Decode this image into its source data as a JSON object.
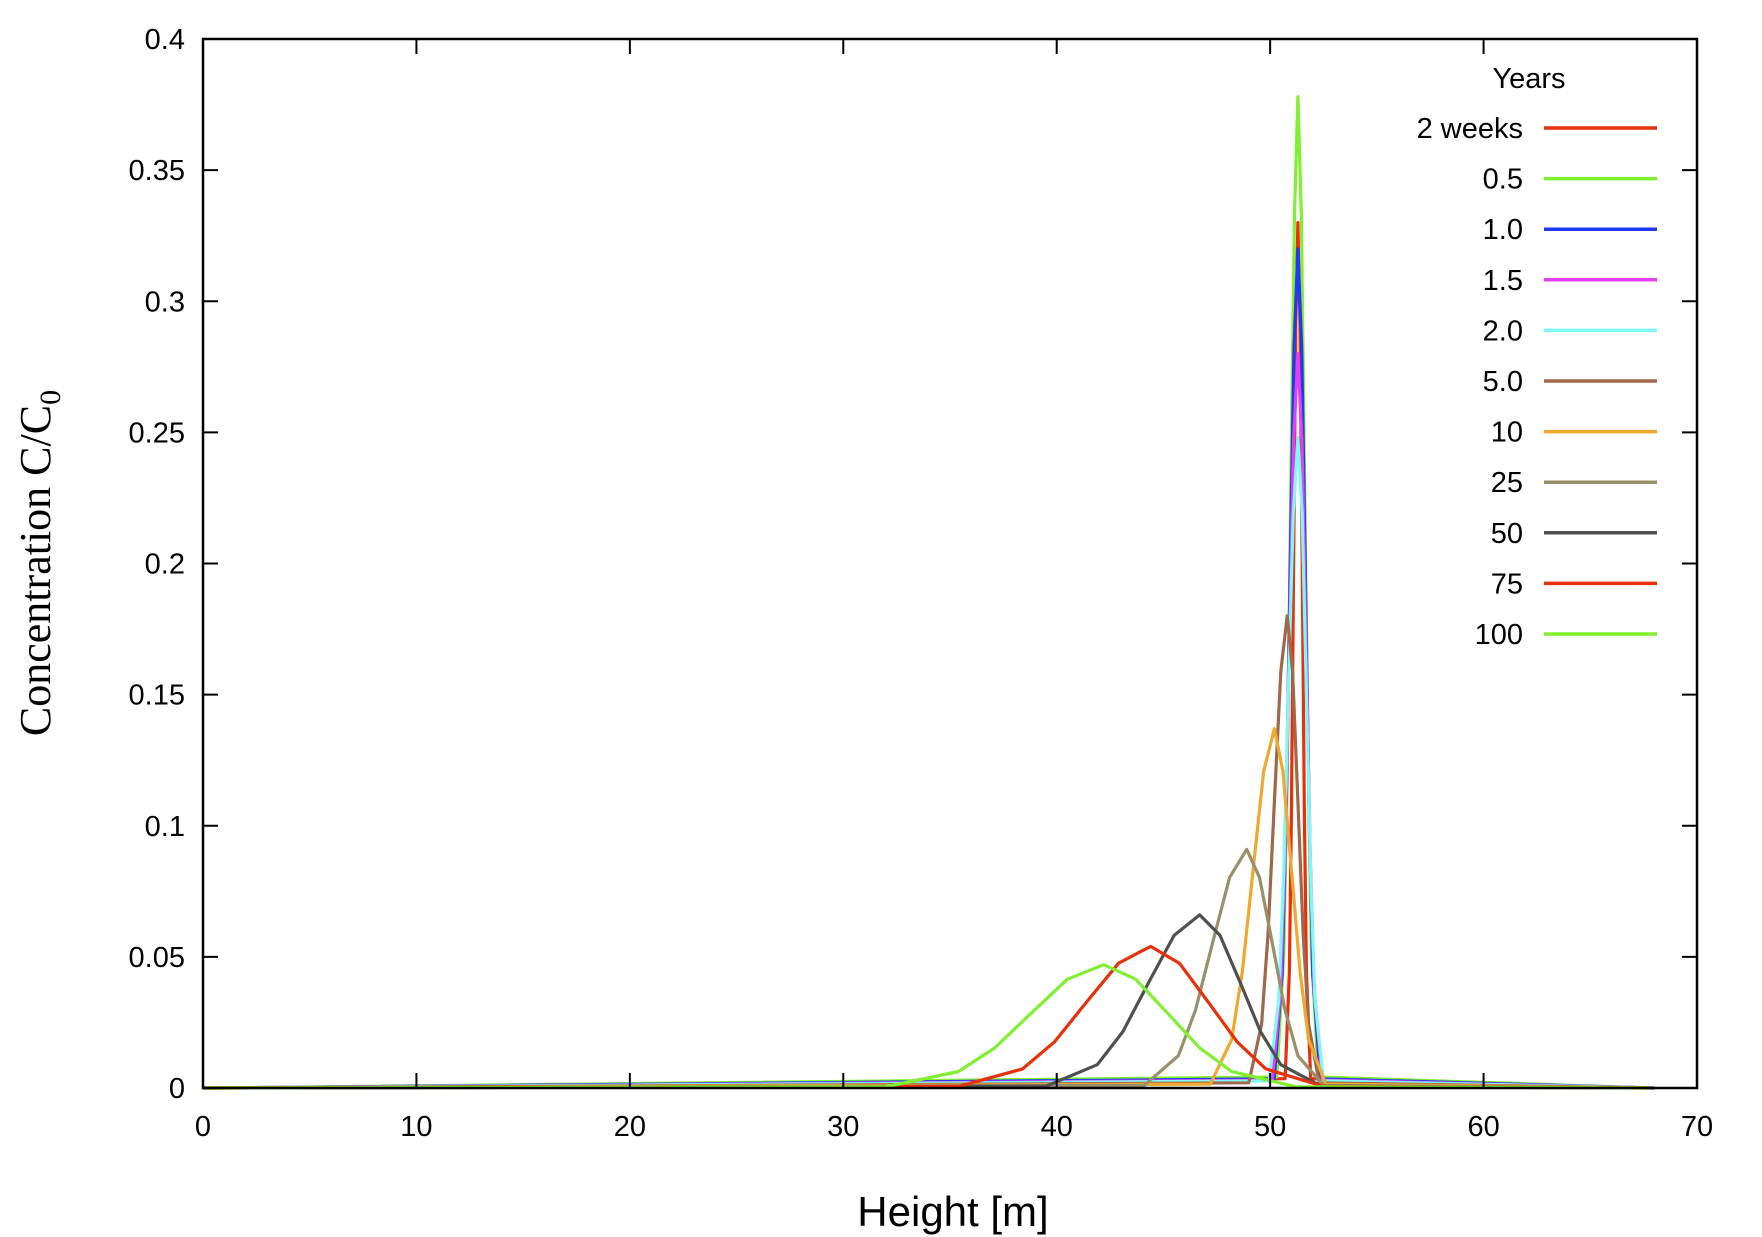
{
  "chart_data": {
    "type": "line",
    "title": "",
    "xlabel": "Height [m]",
    "ylabel_main": "Concentration C/C",
    "ylabel_subscript": "0",
    "xlim": [
      0,
      70
    ],
    "ylim": [
      0,
      0.4
    ],
    "xticks": [
      "0",
      "10",
      "20",
      "30",
      "40",
      "50",
      "60",
      "70"
    ],
    "yticks": [
      "0",
      "0.05",
      "0.1",
      "0.15",
      "0.2",
      "0.25",
      "0.3",
      "0.35",
      "0.4"
    ],
    "grid": false,
    "legend": {
      "title": "Years",
      "placement": "top-right"
    },
    "series": [
      {
        "name": "2 weeks",
        "color": "#e8300a",
        "points": [
          [
            0,
            0
          ],
          [
            50.7,
            0.0036
          ],
          [
            50.9,
            0.0446
          ],
          [
            51.0,
            0.1073
          ],
          [
            51.1,
            0.2003
          ],
          [
            51.2,
            0.2911
          ],
          [
            51.3,
            0.33
          ],
          [
            51.4,
            0.2911
          ],
          [
            51.5,
            0.2003
          ],
          [
            51.6,
            0.1073
          ],
          [
            51.7,
            0.0446
          ],
          [
            51.9,
            0.0036
          ],
          [
            68,
            0
          ]
        ]
      },
      {
        "name": "0.5",
        "color": "#80f030",
        "points": [
          [
            0,
            0
          ],
          [
            50.31,
            0.0042
          ],
          [
            50.64,
            0.051
          ],
          [
            50.81,
            0.1229
          ],
          [
            50.97,
            0.2294
          ],
          [
            51.14,
            0.3334
          ],
          [
            51.3,
            0.378
          ],
          [
            51.46,
            0.3334
          ],
          [
            51.62,
            0.2294
          ],
          [
            51.78,
            0.1229
          ],
          [
            51.94,
            0.051
          ],
          [
            52.26,
            0.0042
          ],
          [
            68,
            0
          ]
        ]
      },
      {
        "name": "1.0",
        "color": "#2038f8",
        "points": [
          [
            0,
            0
          ],
          [
            50.19,
            0.0035
          ],
          [
            50.56,
            0.0432
          ],
          [
            50.75,
            0.104
          ],
          [
            50.93,
            0.1942
          ],
          [
            51.12,
            0.2822
          ],
          [
            51.3,
            0.32
          ],
          [
            51.48,
            0.2822
          ],
          [
            51.65,
            0.1942
          ],
          [
            51.83,
            0.104
          ],
          [
            52.0,
            0.0432
          ],
          [
            52.35,
            0.0035
          ],
          [
            68,
            0
          ]
        ]
      },
      {
        "name": "1.5",
        "color": "#e040f8",
        "points": [
          [
            0,
            0
          ],
          [
            50.1,
            0.003
          ],
          [
            50.5,
            0.0378
          ],
          [
            50.7,
            0.091
          ],
          [
            50.9,
            0.17
          ],
          [
            51.1,
            0.247
          ],
          [
            51.3,
            0.28
          ],
          [
            51.49,
            0.247
          ],
          [
            51.68,
            0.17
          ],
          [
            51.87,
            0.091
          ],
          [
            52.06,
            0.0378
          ],
          [
            52.44,
            0.003
          ],
          [
            68,
            0
          ]
        ]
      },
      {
        "name": "2.0",
        "color": "#80f8f8",
        "points": [
          [
            0,
            0
          ],
          [
            49.95,
            0.0027
          ],
          [
            50.4,
            0.0335
          ],
          [
            50.63,
            0.0806
          ],
          [
            50.85,
            0.1505
          ],
          [
            51.08,
            0.2187
          ],
          [
            51.3,
            0.248
          ],
          [
            51.5,
            0.2187
          ],
          [
            51.7,
            0.1505
          ],
          [
            51.9,
            0.0806
          ],
          [
            52.1,
            0.0335
          ],
          [
            52.5,
            0.0027
          ],
          [
            68,
            0
          ]
        ]
      },
      {
        "name": "5.0",
        "color": "#a0684a",
        "points": [
          [
            0,
            0
          ],
          [
            49.0,
            0.002
          ],
          [
            49.6,
            0.0243
          ],
          [
            49.9,
            0.0585
          ],
          [
            50.2,
            0.1093
          ],
          [
            50.5,
            0.1588
          ],
          [
            50.8,
            0.18
          ],
          [
            51.05,
            0.1588
          ],
          [
            51.3,
            0.1093
          ],
          [
            51.55,
            0.0585
          ],
          [
            51.8,
            0.0243
          ],
          [
            52.3,
            0.002
          ],
          [
            68,
            0
          ]
        ]
      },
      {
        "name": "10",
        "color": "#f0a830",
        "points": [
          [
            0,
            0
          ],
          [
            47.2,
            0.0015
          ],
          [
            48.2,
            0.0185
          ],
          [
            48.7,
            0.0445
          ],
          [
            49.2,
            0.0832
          ],
          [
            49.7,
            0.1208
          ],
          [
            50.2,
            0.137
          ],
          [
            50.6,
            0.1208
          ],
          [
            51.0,
            0.0832
          ],
          [
            51.4,
            0.0445
          ],
          [
            51.8,
            0.0185
          ],
          [
            52.6,
            0.0015
          ],
          [
            68,
            0
          ]
        ]
      },
      {
        "name": "25",
        "color": "#989068",
        "points": [
          [
            0,
            0
          ],
          [
            44.1,
            0.001
          ],
          [
            45.7,
            0.0123
          ],
          [
            46.5,
            0.0296
          ],
          [
            47.3,
            0.0552
          ],
          [
            48.1,
            0.0803
          ],
          [
            48.9,
            0.091
          ],
          [
            49.5,
            0.0803
          ],
          [
            50.1,
            0.0552
          ],
          [
            50.7,
            0.0296
          ],
          [
            51.3,
            0.0123
          ],
          [
            52.5,
            0.001
          ],
          [
            68,
            0
          ]
        ]
      },
      {
        "name": "50",
        "color": "#505050",
        "points": [
          [
            0,
            0
          ],
          [
            39.5,
            0.0007
          ],
          [
            41.9,
            0.0089
          ],
          [
            43.1,
            0.0215
          ],
          [
            44.3,
            0.0401
          ],
          [
            45.5,
            0.0582
          ],
          [
            46.7,
            0.066
          ],
          [
            47.65,
            0.0582
          ],
          [
            48.6,
            0.0401
          ],
          [
            49.55,
            0.0215
          ],
          [
            50.5,
            0.0089
          ],
          [
            52.4,
            0.0007
          ],
          [
            68,
            0
          ]
        ]
      },
      {
        "name": "75",
        "color": "#e8300a",
        "points": [
          [
            0,
            0
          ],
          [
            35.4,
            0.0006
          ],
          [
            38.4,
            0.0073
          ],
          [
            39.9,
            0.0176
          ],
          [
            41.4,
            0.0328
          ],
          [
            42.9,
            0.0476
          ],
          [
            44.4,
            0.054
          ],
          [
            45.75,
            0.0476
          ],
          [
            47.1,
            0.0328
          ],
          [
            48.45,
            0.0176
          ],
          [
            49.8,
            0.0073
          ],
          [
            52.5,
            0.0006
          ],
          [
            68,
            0
          ]
        ]
      },
      {
        "name": "100",
        "color": "#80f030",
        "points": [
          [
            0,
            0
          ],
          [
            32.0,
            0.0005
          ],
          [
            35.4,
            0.0063
          ],
          [
            37.1,
            0.0153
          ],
          [
            38.8,
            0.0285
          ],
          [
            40.5,
            0.0415
          ],
          [
            42.2,
            0.047
          ],
          [
            43.7,
            0.0415
          ],
          [
            45.2,
            0.0285
          ],
          [
            46.7,
            0.0153
          ],
          [
            48.2,
            0.0063
          ],
          [
            51.2,
            0.0005
          ],
          [
            68,
            0
          ]
        ]
      }
    ]
  }
}
